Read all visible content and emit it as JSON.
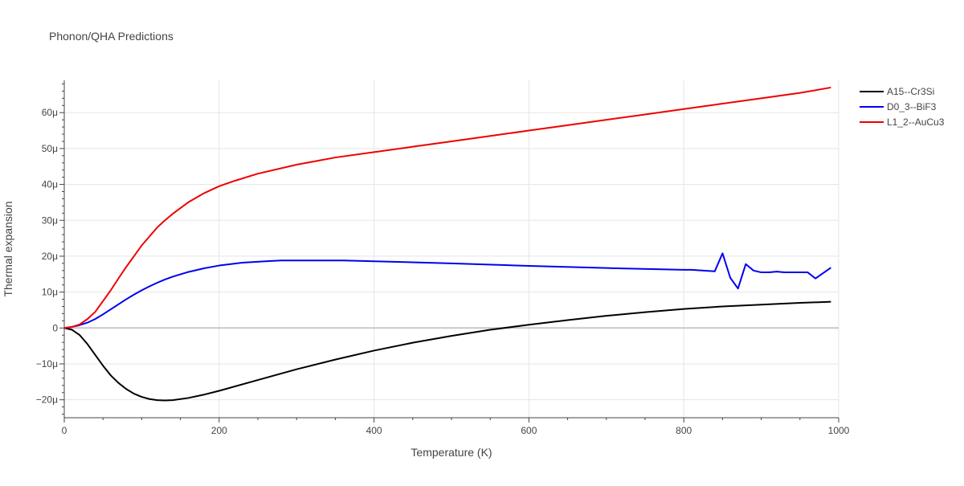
{
  "chart_data": {
    "type": "line",
    "title": "Phonon/QHA Predictions",
    "xlabel": "Temperature (K)",
    "ylabel": "Thermal expansion",
    "xlim": [
      0,
      1000
    ],
    "ylim": [
      -25,
      69
    ],
    "x_ticks": [
      0,
      200,
      400,
      600,
      800,
      1000
    ],
    "x_tick_labels": [
      "0",
      "200",
      "400",
      "600",
      "800",
      "1000"
    ],
    "y_ticks": [
      -20,
      -10,
      0,
      10,
      20,
      30,
      40,
      50,
      60
    ],
    "y_tick_labels": [
      "−20μ",
      "−10μ",
      "0",
      "10μ",
      "20μ",
      "30μ",
      "40μ",
      "50μ",
      "60μ"
    ],
    "grid": true,
    "legend_position": "top-right",
    "series": [
      {
        "name": "A15--Cr3Si",
        "color": "#000000",
        "x": [
          0,
          10,
          20,
          30,
          40,
          50,
          60,
          70,
          80,
          90,
          100,
          110,
          120,
          130,
          140,
          160,
          180,
          200,
          250,
          300,
          350,
          400,
          450,
          500,
          550,
          600,
          650,
          700,
          750,
          800,
          850,
          900,
          950,
          990
        ],
        "y": [
          0,
          -0.5,
          -2,
          -4.5,
          -7.5,
          -10.5,
          -13.2,
          -15.3,
          -17,
          -18.3,
          -19.2,
          -19.8,
          -20.1,
          -20.2,
          -20.1,
          -19.5,
          -18.6,
          -17.5,
          -14.5,
          -11.5,
          -8.8,
          -6.3,
          -4.1,
          -2.2,
          -0.5,
          0.9,
          2.2,
          3.4,
          4.4,
          5.3,
          6.0,
          6.5,
          7.0,
          7.3
        ]
      },
      {
        "name": "D0_3--BiF3",
        "color": "#0000ee",
        "x": [
          0,
          10,
          20,
          30,
          40,
          50,
          60,
          70,
          80,
          90,
          100,
          110,
          120,
          130,
          140,
          160,
          180,
          200,
          230,
          260,
          280,
          300,
          360,
          400,
          500,
          600,
          700,
          800,
          810,
          840,
          850,
          860,
          870,
          880,
          890,
          900,
          910,
          920,
          930,
          940,
          950,
          960,
          970,
          980,
          990
        ],
        "y": [
          0,
          0.3,
          0.8,
          1.5,
          2.5,
          3.8,
          5.2,
          6.6,
          8.0,
          9.3,
          10.5,
          11.6,
          12.6,
          13.5,
          14.3,
          15.6,
          16.6,
          17.4,
          18.2,
          18.6,
          18.8,
          18.8,
          18.8,
          18.6,
          18.0,
          17.3,
          16.7,
          16.2,
          16.2,
          15.8,
          20.8,
          14.0,
          11.0,
          17.8,
          16.0,
          15.5,
          15.5,
          15.7,
          15.5,
          15.5,
          15.5,
          15.5,
          13.8,
          15.3,
          16.8
        ]
      },
      {
        "name": "L1_2--AuCu3",
        "color": "#ee0000",
        "x": [
          0,
          10,
          20,
          30,
          40,
          50,
          60,
          70,
          80,
          90,
          100,
          110,
          120,
          130,
          140,
          160,
          180,
          200,
          220,
          250,
          300,
          350,
          400,
          450,
          500,
          550,
          600,
          650,
          700,
          750,
          800,
          850,
          900,
          950,
          990
        ],
        "y": [
          0,
          0.3,
          1.0,
          2.5,
          4.5,
          7.5,
          10.5,
          13.8,
          17,
          20,
          23,
          25.5,
          28,
          30,
          31.8,
          35,
          37.5,
          39.5,
          41,
          43,
          45.5,
          47.5,
          49,
          50.5,
          52,
          53.5,
          55,
          56.5,
          58,
          59.5,
          61,
          62.5,
          64,
          65.5,
          67
        ]
      }
    ]
  }
}
